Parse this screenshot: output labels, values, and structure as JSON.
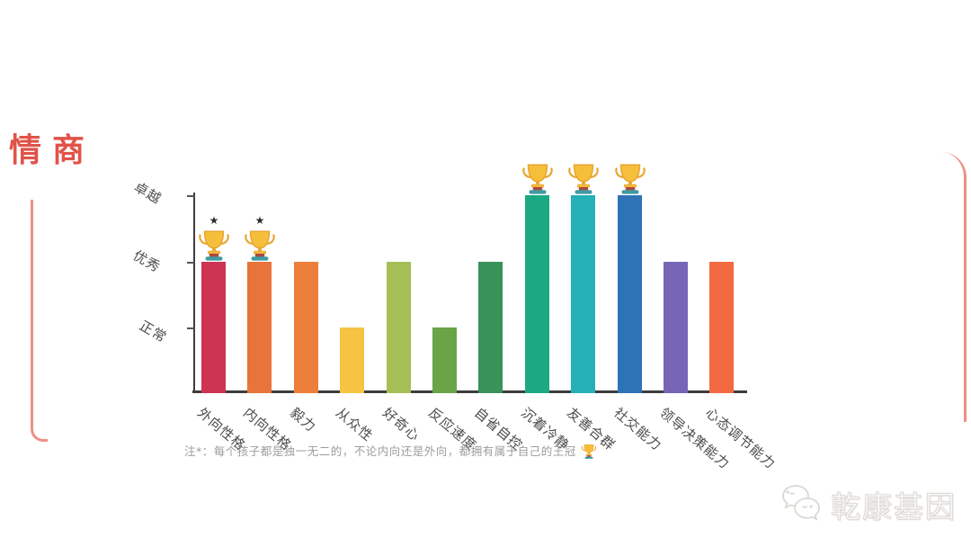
{
  "page": {
    "title": "情商"
  },
  "note": {
    "text": "注*：每个孩子都是独一无二的，不论内向还是外向，都拥有属于自己的王冠"
  },
  "logo": {
    "name": "乾康基因",
    "icon": "wechat-chat-bubbles-icon"
  },
  "colors": {
    "frame_salmon": "#ec9183",
    "title_red": "#e05348",
    "axis_dark": "#3d3d3d",
    "note_gray": "#9c9c9c",
    "trophy_gold": "#f6bf3b",
    "trophy_gold_dark": "#e8a62f",
    "trophy_base_maroon": "#a84a42",
    "trophy_base_teal": "#3f9aa3"
  },
  "chart_data": {
    "type": "bar",
    "title": "情商",
    "categories": [
      "外向性格",
      "内向性格",
      "毅力",
      "从众性",
      "好奇心",
      "反应速度",
      "自省自控",
      "沉着冷静",
      "友善合群",
      "社交能力",
      "领导决策能力",
      "心态调节能力"
    ],
    "values": [
      "优秀",
      "优秀",
      "优秀",
      "正常",
      "优秀",
      "正常",
      "优秀",
      "卓越",
      "卓越",
      "卓越",
      "优秀",
      "优秀"
    ],
    "ordinal_values": [
      2,
      2,
      2,
      1,
      2,
      1,
      2,
      3,
      3,
      3,
      2,
      2
    ],
    "value_scale": {
      "正常": 1,
      "优秀": 2,
      "卓越": 3
    },
    "y_tick_labels": [
      "卓越",
      "优秀",
      "正常"
    ],
    "bar_colors": [
      "#cd3352",
      "#e8743c",
      "#ee7e3b",
      "#f5c443",
      "#a5bf56",
      "#69a447",
      "#38925a",
      "#1ca981",
      "#25afb7",
      "#2e73b6",
      "#7765b8",
      "#f26a41"
    ],
    "trophies": [
      true,
      true,
      false,
      false,
      false,
      false,
      false,
      true,
      true,
      true,
      false,
      false
    ],
    "star_footnote_marks": [
      true,
      true,
      false,
      false,
      false,
      false,
      false,
      false,
      false,
      false,
      false,
      false
    ],
    "xlabel": "",
    "ylabel": "",
    "grid": false,
    "legend": false
  }
}
